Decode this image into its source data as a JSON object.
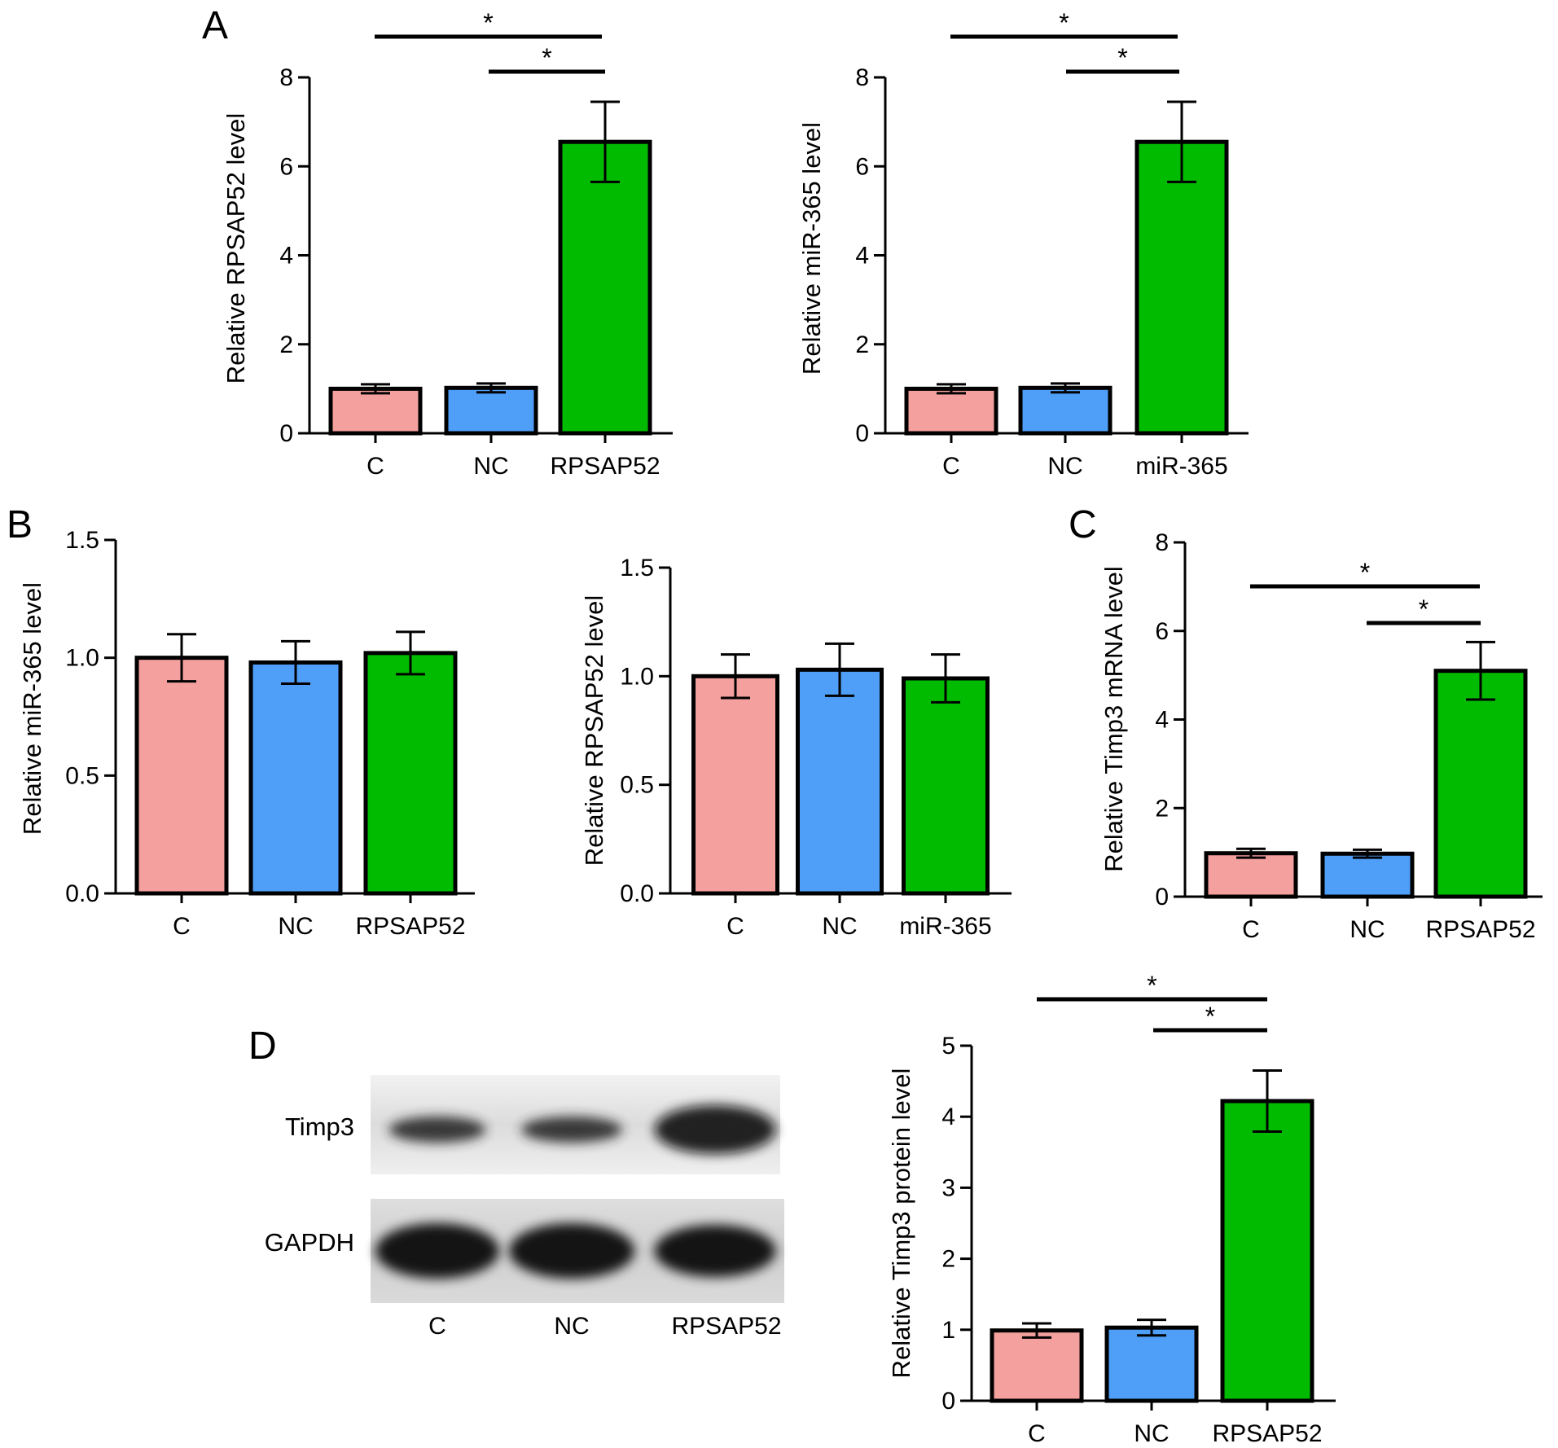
{
  "figure": {
    "panel_letters": [
      "A",
      "B",
      "C",
      "D"
    ]
  },
  "chart_data": [
    {
      "id": "A1",
      "type": "bar",
      "categories": [
        "C",
        "NC",
        "RPSAP52"
      ],
      "values": [
        1.0,
        1.02,
        6.55
      ],
      "errors": [
        0.1,
        0.1,
        0.9
      ],
      "colors": [
        "#f4a09e",
        "#4f9ef7",
        "#00bb00"
      ],
      "ylabel": "Relative RPSAP52 level",
      "ylim": [
        0,
        8
      ],
      "yticks": [
        "0",
        "2",
        "4",
        "6",
        "8"
      ],
      "significance": [
        {
          "from": 0,
          "to": 2,
          "label": "*"
        },
        {
          "from": 1,
          "to": 2,
          "label": "*"
        }
      ]
    },
    {
      "id": "A2",
      "type": "bar",
      "categories": [
        "C",
        "NC",
        "miR-365"
      ],
      "values": [
        1.0,
        1.02,
        6.55
      ],
      "errors": [
        0.1,
        0.1,
        0.9
      ],
      "colors": [
        "#f4a09e",
        "#4f9ef7",
        "#00bb00"
      ],
      "ylabel": "Relative miR-365 level",
      "ylim": [
        0,
        8
      ],
      "yticks": [
        "0",
        "2",
        "4",
        "6",
        "8"
      ],
      "significance": [
        {
          "from": 0,
          "to": 2,
          "label": "*"
        },
        {
          "from": 1,
          "to": 2,
          "label": "*"
        }
      ]
    },
    {
      "id": "B1",
      "type": "bar",
      "categories": [
        "C",
        "NC",
        "RPSAP52"
      ],
      "values": [
        1.0,
        0.98,
        1.02
      ],
      "errors": [
        0.1,
        0.09,
        0.09
      ],
      "colors": [
        "#f4a09e",
        "#4f9ef7",
        "#00bb00"
      ],
      "ylabel": "Relative miR-365 level",
      "ylim": [
        0,
        1.5
      ],
      "yticks": [
        "0.0",
        "0.5",
        "1.0",
        "1.5"
      ],
      "significance": []
    },
    {
      "id": "B2",
      "type": "bar",
      "categories": [
        "C",
        "NC",
        "miR-365"
      ],
      "values": [
        1.0,
        1.03,
        0.99
      ],
      "errors": [
        0.1,
        0.12,
        0.11
      ],
      "colors": [
        "#f4a09e",
        "#4f9ef7",
        "#00bb00"
      ],
      "ylabel": "Relative RPSAP52 level",
      "ylim": [
        0,
        1.5
      ],
      "yticks": [
        "0.0",
        "0.5",
        "1.0",
        "1.5"
      ],
      "significance": []
    },
    {
      "id": "C",
      "type": "bar",
      "categories": [
        "C",
        "NC",
        "RPSAP52"
      ],
      "values": [
        0.98,
        0.97,
        5.1
      ],
      "errors": [
        0.1,
        0.09,
        0.65
      ],
      "colors": [
        "#f4a09e",
        "#4f9ef7",
        "#00bb00"
      ],
      "ylabel": "Relative Timp3 mRNA level",
      "ylim": [
        0,
        8
      ],
      "yticks": [
        "0",
        "2",
        "4",
        "6",
        "8"
      ],
      "significance": [
        {
          "from": 0,
          "to": 2,
          "label": "*"
        },
        {
          "from": 1,
          "to": 2,
          "label": "*"
        }
      ]
    },
    {
      "id": "D",
      "type": "bar",
      "categories": [
        "C",
        "NC",
        "RPSAP52"
      ],
      "values": [
        0.99,
        1.03,
        4.22
      ],
      "errors": [
        0.1,
        0.11,
        0.43
      ],
      "colors": [
        "#f4a09e",
        "#4f9ef7",
        "#00bb00"
      ],
      "ylabel": "Relative Timp3 protein level",
      "ylim": [
        0,
        5
      ],
      "yticks": [
        "0",
        "1",
        "2",
        "3",
        "4",
        "5"
      ],
      "significance": [
        {
          "from": 0,
          "to": 2,
          "label": "*"
        },
        {
          "from": 1,
          "to": 2,
          "label": "*"
        }
      ]
    }
  ],
  "blot": {
    "rows": [
      {
        "label": "Timp3",
        "intensities": [
          0.55,
          0.55,
          0.9
        ]
      },
      {
        "label": "GAPDH",
        "intensities": [
          0.95,
          0.95,
          0.95
        ]
      }
    ],
    "lanes": [
      "C",
      "NC",
      "RPSAP52"
    ]
  }
}
